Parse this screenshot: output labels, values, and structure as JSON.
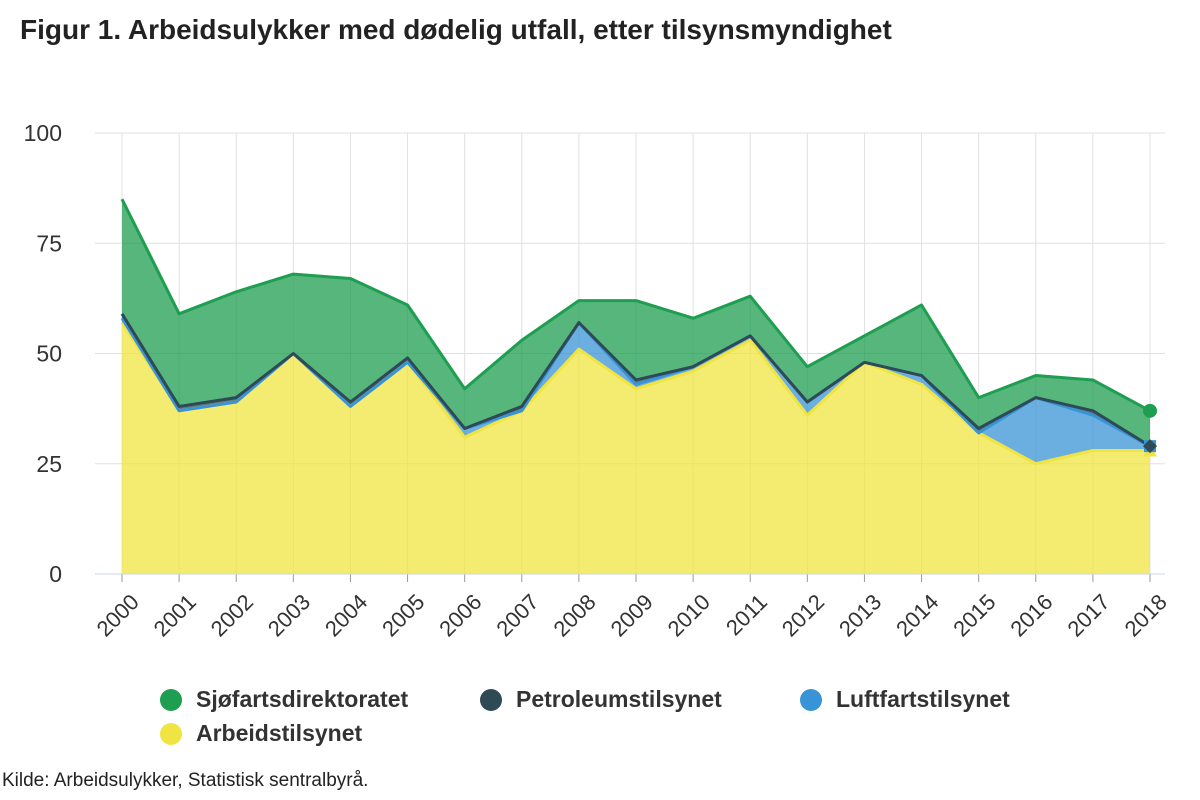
{
  "title": "Figur 1. Arbeidsulykker med dødelig utfall, etter tilsynsmyndighet",
  "source": "Kilde: Arbeidsulykker, Statistisk sentralbyrå.",
  "chart_data": {
    "type": "area",
    "stacked": true,
    "grid": true,
    "legend_position": "bottom",
    "ylim": [
      0,
      100
    ],
    "yticks": [
      0,
      25,
      50,
      75,
      100
    ],
    "categories": [
      "2000",
      "2001",
      "2002",
      "2003",
      "2004",
      "2005",
      "2006",
      "2007",
      "2008",
      "2009",
      "2010",
      "2011",
      "2012",
      "2013",
      "2014",
      "2015",
      "2016",
      "2017",
      "2018"
    ],
    "series": [
      {
        "name": "Arbeidstilsynet",
        "color": "#f0e442",
        "values": [
          57,
          37,
          39,
          50,
          38,
          48,
          31,
          37,
          51,
          42,
          46,
          53,
          36,
          48,
          43,
          32,
          25,
          28,
          28
        ]
      },
      {
        "name": "Luftfartstilsynet",
        "color": "#3894d6",
        "values": [
          1,
          0,
          0,
          0,
          0,
          0,
          2,
          0,
          6,
          1,
          1,
          1,
          3,
          0,
          2,
          0,
          15,
          8,
          1
        ]
      },
      {
        "name": "Petroleumstilsynet",
        "color": "#2e4a55",
        "values": [
          1,
          1,
          1,
          0,
          1,
          1,
          0,
          1,
          0,
          1,
          0,
          0,
          0,
          0,
          0,
          1,
          0,
          1,
          0
        ]
      },
      {
        "name": "Sjøfartsdirektoratet",
        "color": "#1e9e50",
        "values": [
          26,
          21,
          24,
          18,
          28,
          12,
          9,
          15,
          5,
          18,
          11,
          9,
          8,
          6,
          16,
          7,
          5,
          7,
          8
        ]
      }
    ],
    "legend_order": [
      "Sjøfartsdirektoratet",
      "Petroleumstilsynet",
      "Luftfartstilsynet",
      "Arbeidstilsynet"
    ]
  }
}
